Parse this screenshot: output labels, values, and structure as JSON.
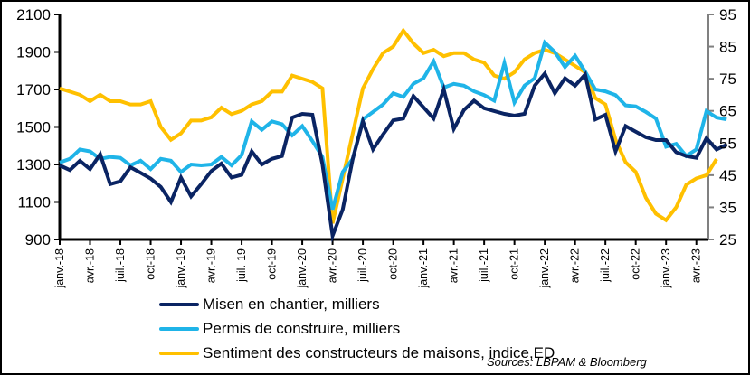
{
  "chart_data": {
    "type": "line",
    "title": "",
    "x_tick_labels": [
      "janv.-18",
      "avr.-18",
      "juil.-18",
      "oct-18",
      "janv.-19",
      "avr.-19",
      "juil.-19",
      "oct-19",
      "janv.-20",
      "avr.-20",
      "juil.-20",
      "oct-20",
      "janv.-21",
      "avr.-21",
      "juil.-21",
      "oct-21",
      "janv.-22",
      "avr.-22",
      "juil.-22",
      "oct-22",
      "janv.-23",
      "avr.-23"
    ],
    "x_start": "2018-01",
    "frequency": "monthly",
    "left_axis": {
      "min": 900,
      "max": 2100,
      "ticks": [
        900,
        1100,
        1300,
        1500,
        1700,
        1900,
        2100
      ]
    },
    "right_axis": {
      "min": 25,
      "max": 95,
      "ticks": [
        25,
        35,
        45,
        55,
        65,
        75,
        85,
        95
      ]
    },
    "grid": false,
    "legend_position": "bottom",
    "series": [
      {
        "name": "Misen en chantier, milliers",
        "axis": "left",
        "color": "#0a2463",
        "values": [
          1295,
          1270,
          1320,
          1275,
          1355,
          1195,
          1210,
          1285,
          1255,
          1225,
          1180,
          1100,
          1230,
          1130,
          1195,
          1265,
          1305,
          1230,
          1245,
          1370,
          1300,
          1330,
          1345,
          1550,
          1570,
          1565,
          1300,
          920,
          1060,
          1330,
          1530,
          1380,
          1460,
          1535,
          1545,
          1665,
          1605,
          1545,
          1700,
          1490,
          1590,
          1640,
          1600,
          1585,
          1570,
          1560,
          1570,
          1720,
          1785,
          1680,
          1760,
          1720,
          1780,
          1540,
          1565,
          1370,
          1505,
          1475,
          1445,
          1430,
          1430,
          1365,
          1345,
          1335,
          1440,
          1380,
          1405
        ]
      },
      {
        "name": "Permis de construire, milliers",
        "axis": "left",
        "color": "#1fb4e8",
        "values": [
          1310,
          1330,
          1380,
          1370,
          1330,
          1340,
          1335,
          1295,
          1320,
          1275,
          1330,
          1320,
          1260,
          1300,
          1295,
          1300,
          1340,
          1295,
          1350,
          1530,
          1485,
          1530,
          1515,
          1455,
          1505,
          1425,
          1340,
          1060,
          1260,
          1330,
          1540,
          1580,
          1620,
          1680,
          1660,
          1730,
          1760,
          1850,
          1710,
          1730,
          1720,
          1690,
          1670,
          1640,
          1840,
          1630,
          1720,
          1760,
          1950,
          1900,
          1820,
          1880,
          1795,
          1700,
          1690,
          1670,
          1615,
          1610,
          1580,
          1545,
          1395,
          1410,
          1345,
          1380,
          1585,
          1550,
          1540
        ]
      },
      {
        "name": "Sentiment des constructeurs de maisons, indice,ED",
        "axis": "right",
        "color": "#ffc000",
        "values": [
          72,
          71,
          70,
          68,
          70,
          68,
          68,
          67,
          67,
          68,
          60,
          56,
          58,
          62,
          62,
          63,
          66,
          64,
          65,
          67,
          68,
          71,
          71,
          76,
          75,
          74,
          72,
          30,
          44,
          58,
          72,
          78,
          83,
          85,
          90,
          86,
          83,
          84,
          82,
          83,
          83,
          81,
          80,
          76,
          75,
          77,
          81,
          83,
          84,
          83,
          81,
          79,
          77,
          69,
          67,
          56,
          49,
          46,
          38,
          33,
          31,
          35,
          42,
          44,
          45,
          50
        ]
      }
    ],
    "annotations": {
      "source": "Sources: LBPAM & Bloomberg"
    }
  }
}
